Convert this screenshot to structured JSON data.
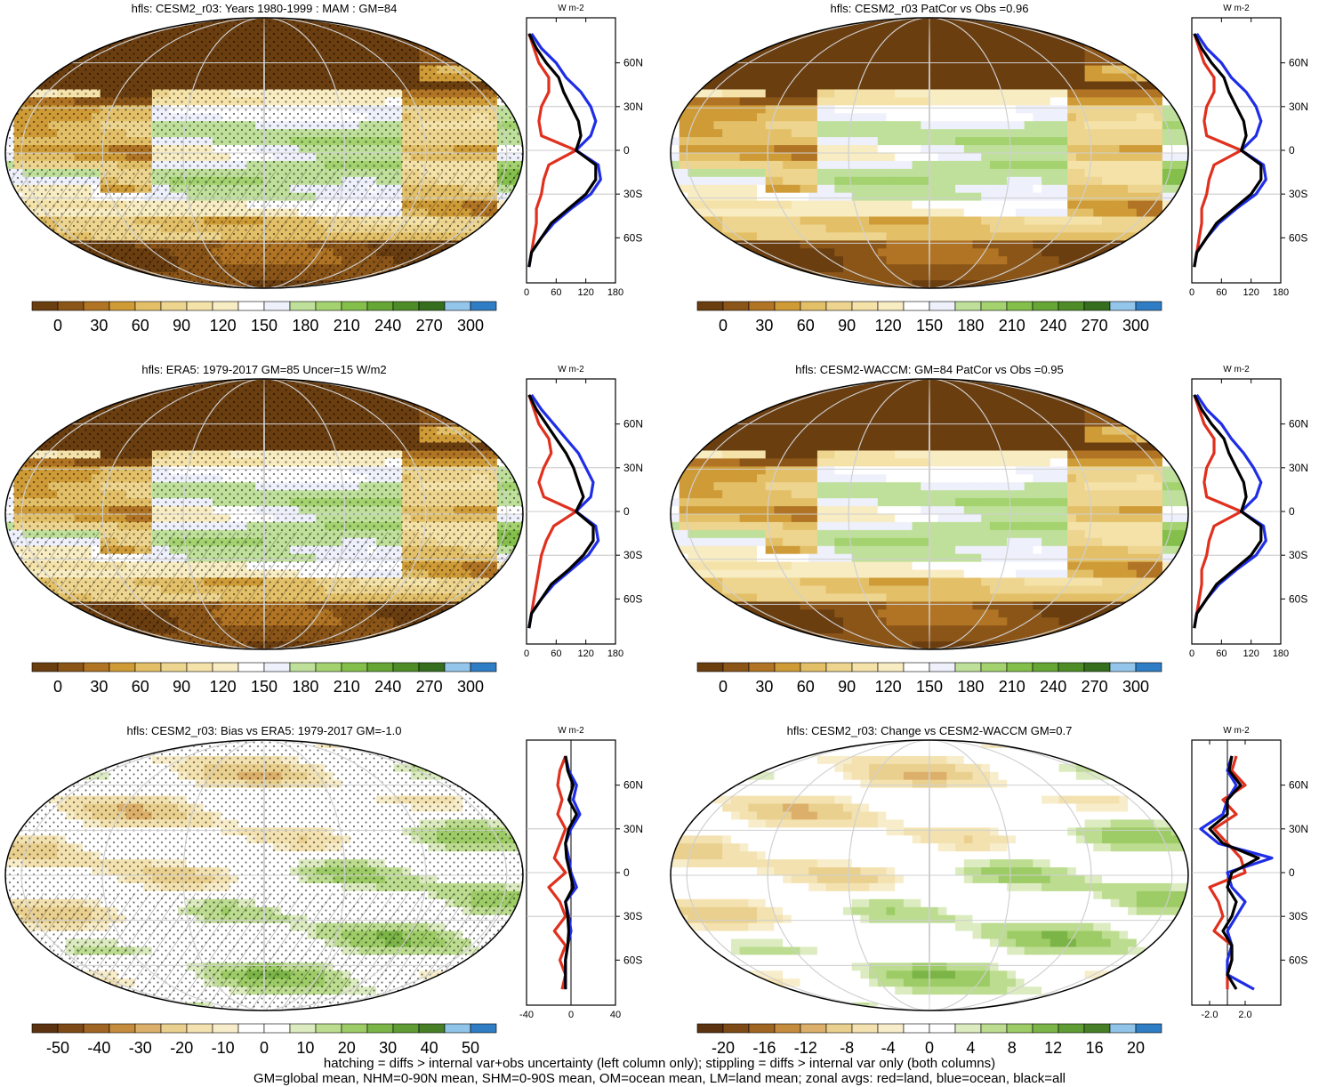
{
  "colors": {
    "abs_scale": [
      "#6b3e10",
      "#8b5518",
      "#b07424",
      "#cf9b36",
      "#e3c068",
      "#eed58f",
      "#f4e2a8",
      "#f8ecc2",
      "#ffffff",
      "#eef0fb",
      "#bfe09a",
      "#a3d26f",
      "#84bf4b",
      "#65a634",
      "#4d8c27",
      "#356e1d",
      "#93c6ea",
      "#2f7dc4"
    ],
    "bias_scale": [
      "#5c3310",
      "#7d4a16",
      "#a06523",
      "#c48c3c",
      "#dcb06a",
      "#ead08f",
      "#f3e2b0",
      "#f8edca",
      "#ffffff",
      "#ffffff",
      "#dcecc0",
      "#bcdc8f",
      "#9dcc66",
      "#7cb547",
      "#5f9c34",
      "#477f26",
      "#90c4e8",
      "#2f7dc4"
    ],
    "change_scale": [
      "#5c3310",
      "#7d4a16",
      "#a06523",
      "#c48c3c",
      "#dcb06a",
      "#ead08f",
      "#f3e2b0",
      "#f8edca",
      "#ffffff",
      "#ffffff",
      "#dcecc0",
      "#bcdc8f",
      "#9dcc66",
      "#7cb547",
      "#5f9c34",
      "#477f26",
      "#90c4e8",
      "#2f7dc4"
    ],
    "land": "#e0301e",
    "ocean": "#1f2ee6",
    "all": "#000000"
  },
  "footer": {
    "line1": "hatching = diffs > internal var+obs uncertainty (left column only); stippling = diffs > internal var only (both columns)",
    "line2": "GM=global mean, NHM=0-90N mean, SHM=0-90S mean, OM=ocean mean, LM=land mean; zonal avgs: red=land, blue=ocean, black=all"
  },
  "chart_data": [
    {
      "type": "heatmap",
      "title": "hfls: CESM2_r03: Years 1980-1999 : MAM : GM=84",
      "colorbar": {
        "ticks": [
          "0",
          "30",
          "60",
          "90",
          "120",
          "150",
          "180",
          "210",
          "240",
          "270",
          "300"
        ],
        "scale": "abs"
      },
      "field": "absolute",
      "stipple": true,
      "hatch": true,
      "zonal": {
        "xlim": [
          0,
          180
        ],
        "xticks": [
          "0",
          "60",
          "120",
          "180"
        ],
        "unit": "W m-2",
        "yticks": [
          "60N",
          "30N",
          "0",
          "30S",
          "60S"
        ],
        "lat": [
          80,
          70,
          60,
          50,
          40,
          30,
          20,
          10,
          0,
          -10,
          -20,
          -30,
          -40,
          -50,
          -60,
          -70,
          -80
        ],
        "land": [
          5,
          15,
          25,
          45,
          45,
          30,
          25,
          30,
          100,
          45,
          35,
          30,
          20,
          20,
          15,
          10,
          5
        ],
        "ocean": [
          10,
          30,
          60,
          80,
          110,
          130,
          140,
          130,
          100,
          145,
          150,
          130,
          90,
          55,
          30,
          10,
          5
        ],
        "all": [
          5,
          20,
          40,
          65,
          75,
          90,
          105,
          110,
          100,
          140,
          140,
          120,
          85,
          50,
          30,
          10,
          5
        ]
      }
    },
    {
      "type": "heatmap",
      "title": "hfls: CESM2_r03 PatCor vs Obs =0.96",
      "colorbar": {
        "ticks": [
          "0",
          "30",
          "60",
          "90",
          "120",
          "150",
          "180",
          "210",
          "240",
          "270",
          "300"
        ],
        "scale": "abs"
      },
      "field": "absolute",
      "stipple": false,
      "hatch": false,
      "zonal": {
        "xlim": [
          0,
          180
        ],
        "xticks": [
          "0",
          "60",
          "120",
          "180"
        ],
        "unit": "W m-2",
        "yticks": [
          "60N",
          "30N",
          "0",
          "30S",
          "60S"
        ],
        "lat": [
          80,
          70,
          60,
          50,
          40,
          30,
          20,
          10,
          0,
          -10,
          -20,
          -30,
          -40,
          -50,
          -60,
          -70,
          -80
        ],
        "land": [
          5,
          15,
          25,
          45,
          45,
          30,
          25,
          30,
          100,
          45,
          35,
          30,
          20,
          20,
          15,
          10,
          5
        ],
        "ocean": [
          10,
          30,
          60,
          80,
          110,
          130,
          140,
          130,
          100,
          145,
          150,
          130,
          90,
          55,
          30,
          10,
          5
        ],
        "all": [
          5,
          20,
          40,
          65,
          75,
          90,
          105,
          110,
          100,
          140,
          140,
          120,
          85,
          50,
          30,
          10,
          5
        ]
      }
    },
    {
      "type": "heatmap",
      "title": "hfls: ERA5: 1979-2017 GM=85 Uncer=15 W/m2",
      "colorbar": {
        "ticks": [
          "0",
          "30",
          "60",
          "90",
          "120",
          "150",
          "180",
          "210",
          "240",
          "270",
          "300"
        ],
        "scale": "abs"
      },
      "field": "absolute",
      "stipple": true,
      "hatch": true,
      "zonal": {
        "xlim": [
          0,
          180
        ],
        "xticks": [
          "0",
          "60",
          "120",
          "180"
        ],
        "unit": "W m-2",
        "yticks": [
          "60N",
          "30N",
          "0",
          "30S",
          "60S"
        ],
        "lat": [
          80,
          70,
          60,
          50,
          40,
          30,
          20,
          10,
          0,
          -10,
          -20,
          -30,
          -40,
          -50,
          -60,
          -70,
          -80
        ],
        "land": [
          5,
          15,
          25,
          45,
          50,
          35,
          25,
          35,
          100,
          55,
          40,
          30,
          25,
          20,
          15,
          10,
          5
        ],
        "ocean": [
          10,
          30,
          55,
          80,
          105,
          120,
          135,
          130,
          100,
          140,
          145,
          125,
          90,
          55,
          30,
          10,
          5
        ],
        "all": [
          5,
          20,
          40,
          60,
          80,
          95,
          105,
          115,
          100,
          135,
          135,
          115,
          85,
          50,
          30,
          10,
          5
        ]
      }
    },
    {
      "type": "heatmap",
      "title": "hfls: CESM2-WACCM: GM=84 PatCor vs Obs =0.95",
      "colorbar": {
        "ticks": [
          "0",
          "30",
          "60",
          "90",
          "120",
          "150",
          "180",
          "210",
          "240",
          "270",
          "300"
        ],
        "scale": "abs"
      },
      "field": "absolute",
      "stipple": false,
      "hatch": false,
      "zonal": {
        "xlim": [
          0,
          180
        ],
        "xticks": [
          "0",
          "60",
          "120",
          "180"
        ],
        "unit": "W m-2",
        "yticks": [
          "60N",
          "30N",
          "0",
          "30S",
          "60S"
        ],
        "lat": [
          80,
          70,
          60,
          50,
          40,
          30,
          20,
          10,
          0,
          -10,
          -20,
          -30,
          -40,
          -50,
          -60,
          -70,
          -80
        ],
        "land": [
          5,
          15,
          25,
          45,
          45,
          30,
          25,
          30,
          100,
          45,
          35,
          30,
          20,
          20,
          15,
          10,
          5
        ],
        "ocean": [
          10,
          30,
          60,
          80,
          105,
          125,
          140,
          130,
          100,
          145,
          150,
          130,
          90,
          55,
          30,
          10,
          5
        ],
        "all": [
          5,
          20,
          40,
          65,
          75,
          90,
          105,
          110,
          100,
          140,
          140,
          120,
          85,
          50,
          30,
          10,
          5
        ]
      }
    },
    {
      "type": "heatmap",
      "title": "hfls: CESM2_r03: Bias vs ERA5: 1979-2017 GM=-1.0",
      "colorbar": {
        "ticks": [
          "-50",
          "-40",
          "-30",
          "-20",
          "-10",
          "0",
          "10",
          "20",
          "30",
          "40",
          "50"
        ],
        "scale": "bias"
      },
      "field": "bias",
      "stipple": true,
      "hatch": true,
      "zonal": {
        "xlim": [
          -40,
          40
        ],
        "xticks": [
          "-40",
          "0",
          "40"
        ],
        "unit": "W m-2",
        "yticks": [
          "60N",
          "30N",
          "0",
          "30S",
          "60S"
        ],
        "lat": [
          80,
          70,
          60,
          50,
          40,
          30,
          20,
          10,
          0,
          -10,
          -20,
          -30,
          -40,
          -50,
          -60,
          -70,
          -80
        ],
        "land": [
          -5,
          -10,
          -12,
          -8,
          -12,
          -5,
          -10,
          -15,
          -5,
          -20,
          -10,
          -5,
          -15,
          -5,
          -10,
          -5,
          -8
        ],
        "ocean": [
          -5,
          -2,
          5,
          2,
          8,
          0,
          -5,
          -2,
          0,
          5,
          -5,
          -2,
          0,
          -3,
          -5,
          -5,
          -5
        ],
        "all": [
          -5,
          -3,
          2,
          -2,
          5,
          -2,
          -5,
          -4,
          -1,
          2,
          -5,
          -3,
          -2,
          -3,
          -5,
          -5,
          -5
        ]
      }
    },
    {
      "type": "heatmap",
      "title": "hfls: CESM2_r03: Change vs CESM2-WACCM GM=0.7",
      "colorbar": {
        "ticks": [
          "-20",
          "-16",
          "-12",
          "-8",
          "-4",
          "0",
          "4",
          "8",
          "12",
          "16",
          "20"
        ],
        "scale": "change"
      },
      "field": "change",
      "stipple": false,
      "hatch": false,
      "zonal": {
        "xlim": [
          -4,
          6
        ],
        "xticks": [
          "-2.0",
          "2.0"
        ],
        "xtickvals": [
          -2,
          2
        ],
        "unit": "W m-2",
        "yticks": [
          "60N",
          "30N",
          "0",
          "30S",
          "60S"
        ],
        "lat": [
          80,
          70,
          60,
          50,
          40,
          30,
          20,
          10,
          0,
          -10,
          -20,
          -30,
          -40,
          -50,
          -60,
          -70,
          -80
        ],
        "land": [
          1,
          0.5,
          2,
          -0.5,
          1,
          -1.5,
          0,
          1.5,
          2,
          -2,
          -1,
          -0.5,
          -1.5,
          0.5,
          0.5,
          0,
          0
        ],
        "ocean": [
          0.5,
          0,
          1,
          0,
          -0.5,
          -3,
          -1,
          5,
          0,
          0.5,
          2,
          1,
          0,
          0.5,
          0,
          0,
          3
        ],
        "all": [
          0.5,
          0.2,
          1.5,
          0,
          0,
          -2,
          -0.5,
          3.5,
          0.5,
          0,
          1,
          0.5,
          -0.5,
          0.5,
          0.5,
          0,
          1
        ]
      }
    }
  ]
}
